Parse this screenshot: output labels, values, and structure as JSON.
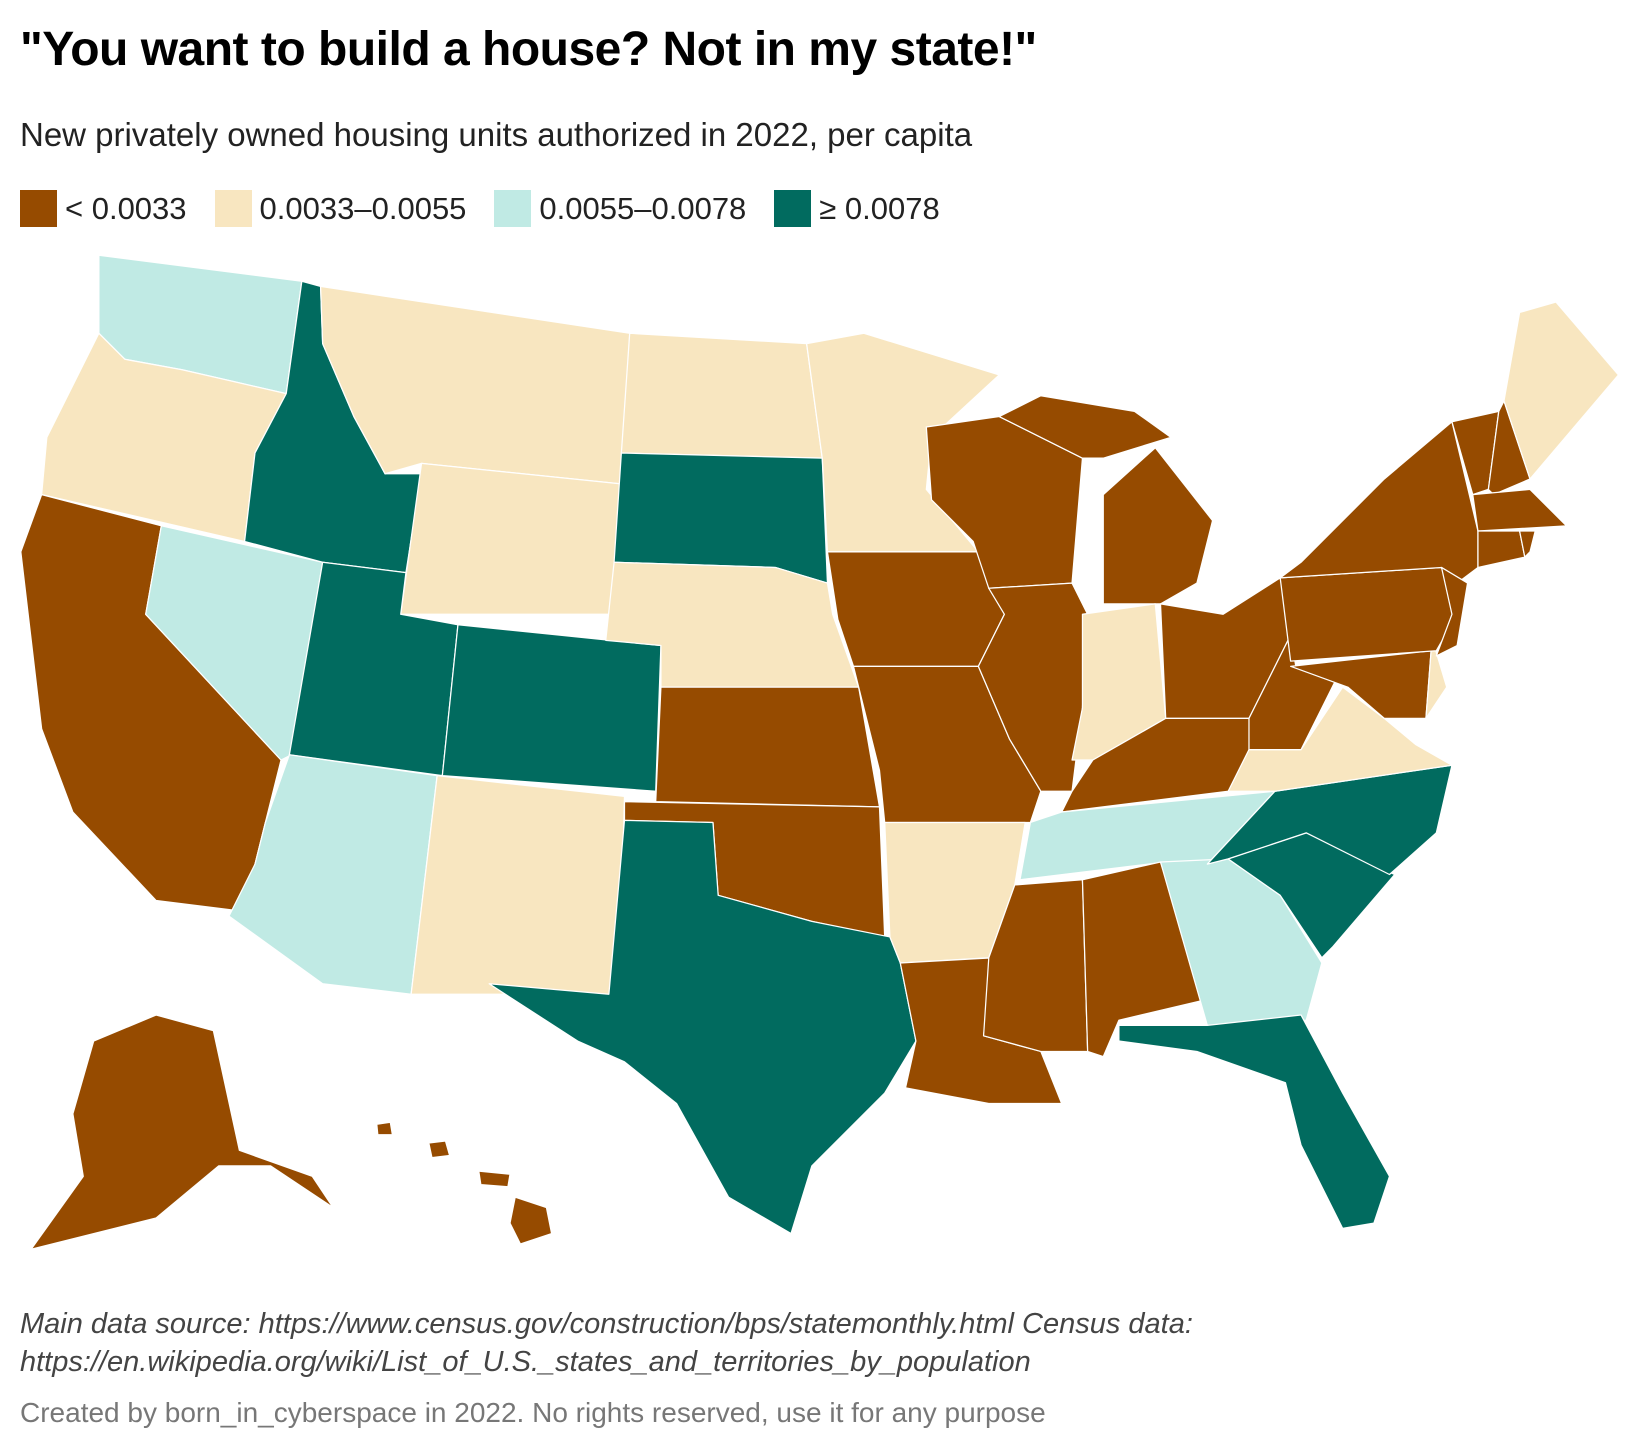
{
  "title": "\"You want to build a house? Not in my state!\"",
  "subtitle": "New privately owned housing units authorized in 2022, per capita",
  "legend": [
    {
      "label": "< 0.0033",
      "color": "#964B00"
    },
    {
      "label": "0.0033–0.0055",
      "color": "#F8E6C0"
    },
    {
      "label": "0.0055–0.0078",
      "color": "#C0EAE4"
    },
    {
      "label": "≥ 0.0078",
      "color": "#016B5F"
    }
  ],
  "chart_data": {
    "type": "choropleth",
    "region": "United States",
    "categories": [
      "< 0.0033",
      "0.0033–0.0055",
      "0.0055–0.0078",
      "≥ 0.0078"
    ],
    "state_category": {
      "CA": 0,
      "KS": 0,
      "OK": 0,
      "IA": 0,
      "MO": 0,
      "IL": 0,
      "WI": 0,
      "MI": 0,
      "OH": 0,
      "KY": 0,
      "WV": 0,
      "PA": 0,
      "NY": 0,
      "VT": 0,
      "NH": 0,
      "MA": 0,
      "CT": 0,
      "RI": 0,
      "NJ": 0,
      "MD": 0,
      "LA": 0,
      "MS": 0,
      "AL": 0,
      "AK": 0,
      "HI": 0,
      "OR": 1,
      "MT": 1,
      "WY": 1,
      "ND": 1,
      "MN": 1,
      "NE": 1,
      "NM": 1,
      "AR": 1,
      "IN": 1,
      "VA": 1,
      "ME": 1,
      "DE": 1,
      "WA": 2,
      "NV": 2,
      "AZ": 2,
      "TN": 2,
      "GA": 2,
      "ID": 3,
      "UT": 3,
      "CO": 3,
      "SD": 3,
      "TX": 3,
      "NC": 3,
      "SC": 3,
      "FL": 3
    }
  },
  "footer": {
    "source": "Main data source: https://www.census.gov/construction/bps/statemonthly.html Census data: https://en.wikipedia.org/wiki/List_of_U.S._states_and_territories_by_population",
    "credit": "Created by born_in_cyberspace in 2022. No rights reserved, use it for any purpose"
  }
}
